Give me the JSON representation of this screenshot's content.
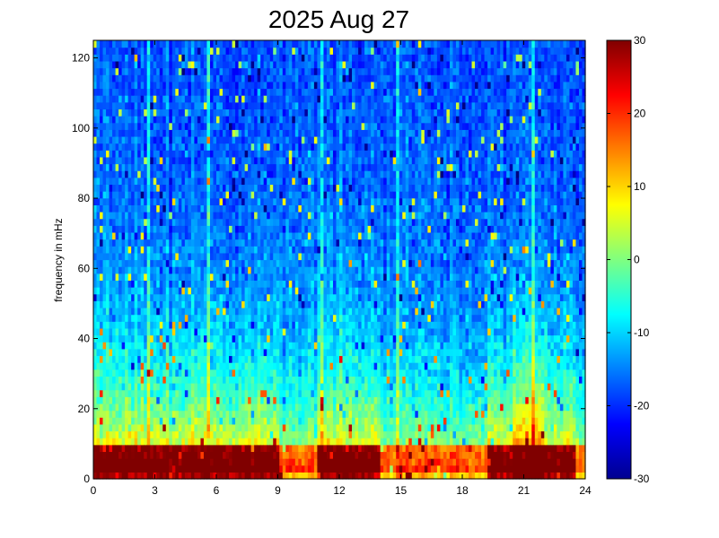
{
  "chart_data": {
    "type": "heatmap",
    "title": "2025 Aug 27",
    "xlabel": "",
    "ylabel": "frequency in mHz",
    "xlim": [
      0,
      24
    ],
    "ylim": [
      0,
      125
    ],
    "x_ticks": [
      "0",
      "3",
      "6",
      "9",
      "12",
      "15",
      "18",
      "21",
      "24"
    ],
    "y_ticks": [
      "0",
      "20",
      "40",
      "60",
      "80",
      "100",
      "120"
    ],
    "colorbar": {
      "colormap": "jet",
      "range": [
        -30,
        30
      ],
      "ticks": [
        "-30",
        "-20",
        "-10",
        "0",
        "10",
        "20",
        "30"
      ]
    },
    "time_bins": 156,
    "freq_bins": 64,
    "bright_vertical_lines_hours": [
      2.7,
      5.6,
      11.1,
      14.8,
      21.4
    ],
    "high_power_intervals_hours": [
      [
        0,
        9
      ],
      [
        11,
        14
      ],
      [
        19.3,
        23.5
      ]
    ],
    "low_frequency_band_mHz": [
      0,
      10
    ]
  }
}
